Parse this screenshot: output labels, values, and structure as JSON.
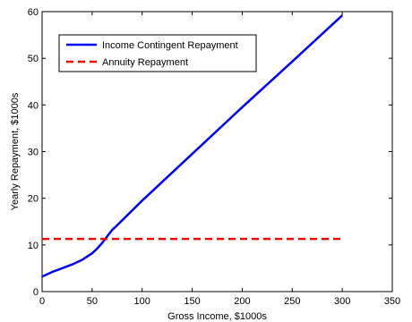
{
  "chart_data": {
    "type": "line",
    "xlabel": "Gross Income, $1000s",
    "ylabel": "Yearly Repayment, $1000s",
    "xlim": [
      0,
      350
    ],
    "ylim": [
      0,
      60
    ],
    "xticks": [
      "0",
      "50",
      "100",
      "150",
      "200",
      "250",
      "300",
      "350"
    ],
    "yticks": [
      "0",
      "10",
      "20",
      "30",
      "40",
      "50",
      "60"
    ],
    "grid": false,
    "legend": "top-left",
    "series": [
      {
        "name": "Income Contingent Repayment",
        "color": "#0000ff",
        "style": "solid",
        "x": [
          0,
          10,
          20,
          30,
          40,
          50,
          55,
          60,
          65,
          70,
          75,
          100,
          150,
          200,
          250,
          300
        ],
        "y": [
          3.2,
          4.2,
          5.0,
          5.8,
          6.8,
          8.2,
          9.2,
          10.4,
          11.8,
          13.2,
          14.2,
          19.5,
          29.5,
          39.5,
          49.3,
          59.2
        ]
      },
      {
        "name": "Annuity Repayment",
        "color": "#ff0000",
        "style": "dashed",
        "x": [
          0,
          300
        ],
        "y": [
          11.3,
          11.3
        ]
      }
    ]
  }
}
